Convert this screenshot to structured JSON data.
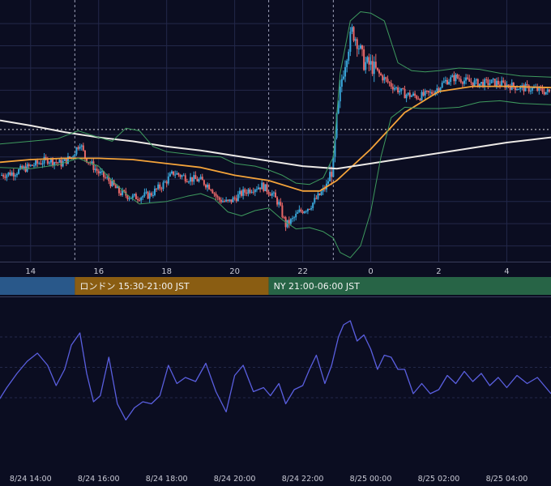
{
  "chart_data": [
    {
      "type": "candlestick",
      "panel": "price",
      "x_axis": {
        "type": "hours",
        "range": [
          13.1,
          29.3
        ],
        "tick_labels": [
          "14",
          "16",
          "18",
          "20",
          "22",
          "0",
          "2",
          "4"
        ],
        "tick_hours": [
          14,
          16,
          18,
          20,
          22,
          24,
          26,
          28
        ]
      },
      "y_axis": {
        "range": [
          0,
          100
        ],
        "labels_visible": false,
        "gridlines": [
          6,
          14.5,
          23,
          31.5,
          40,
          48.5,
          57,
          65.5,
          74,
          82.5,
          91
        ]
      },
      "session_dividers": [
        15.3,
        21,
        22.9
      ],
      "reference_line": 50.5,
      "price_path": [
        [
          13.1,
          33
        ],
        [
          13.5,
          34
        ],
        [
          14.0,
          36.5
        ],
        [
          14.5,
          39
        ],
        [
          14.9,
          37.5
        ],
        [
          15.2,
          40
        ],
        [
          15.45,
          45.5
        ],
        [
          15.6,
          40
        ],
        [
          15.8,
          37
        ],
        [
          16.0,
          34
        ],
        [
          16.3,
          31
        ],
        [
          16.6,
          26.5
        ],
        [
          17.0,
          24.5
        ],
        [
          17.5,
          25.5
        ],
        [
          17.9,
          29.5
        ],
        [
          18.2,
          34
        ],
        [
          18.6,
          32
        ],
        [
          19.0,
          31
        ],
        [
          19.3,
          28.5
        ],
        [
          19.5,
          24
        ],
        [
          19.8,
          22.5
        ],
        [
          20.2,
          26
        ],
        [
          20.5,
          28
        ],
        [
          20.8,
          29
        ],
        [
          21.1,
          26
        ],
        [
          21.3,
          22
        ],
        [
          21.5,
          14
        ],
        [
          21.7,
          16
        ],
        [
          21.9,
          19
        ],
        [
          22.2,
          21
        ],
        [
          22.5,
          25.5
        ],
        [
          22.7,
          29
        ],
        [
          22.9,
          37
        ],
        [
          23.0,
          54
        ],
        [
          23.15,
          70
        ],
        [
          23.3,
          80
        ],
        [
          23.45,
          88
        ],
        [
          23.6,
          84.5
        ],
        [
          23.8,
          76
        ],
        [
          24.0,
          75
        ],
        [
          24.3,
          71
        ],
        [
          24.6,
          67.5
        ],
        [
          25.0,
          64
        ],
        [
          25.4,
          63
        ],
        [
          25.8,
          64.5
        ],
        [
          26.2,
          69
        ],
        [
          26.5,
          70.5
        ],
        [
          26.8,
          69
        ],
        [
          27.2,
          68
        ],
        [
          27.6,
          68.5
        ],
        [
          28.0,
          67.5
        ],
        [
          28.4,
          66.5
        ],
        [
          28.8,
          66
        ],
        [
          29.3,
          64.5
        ]
      ],
      "candle_colors": {
        "up": "#39a6d9",
        "down": "#e86868"
      },
      "series": [
        {
          "name": "",
          "role": "short moving average",
          "color": "#f4a33a",
          "values": [
            [
              13.1,
              38
            ],
            [
              14,
              39
            ],
            [
              15,
              39.5
            ],
            [
              16,
              39.5
            ],
            [
              17,
              39
            ],
            [
              18,
              37.5
            ],
            [
              19,
              36
            ],
            [
              20,
              33
            ],
            [
              21,
              31
            ],
            [
              22,
              27
            ],
            [
              22.5,
              27
            ],
            [
              23,
              31
            ],
            [
              24,
              43
            ],
            [
              25,
              57
            ],
            [
              26,
              65
            ],
            [
              27,
              67
            ],
            [
              28,
              67
            ],
            [
              29.3,
              66.5
            ]
          ]
        },
        {
          "name": "",
          "role": "long moving average",
          "color": "#ece9e6",
          "values": [
            [
              13.1,
              54
            ],
            [
              14,
              52
            ],
            [
              15,
              49.5
            ],
            [
              16,
              47.5
            ],
            [
              17,
              46
            ],
            [
              18,
              44
            ],
            [
              19,
              42.5
            ],
            [
              20,
              40.5
            ],
            [
              21,
              38.5
            ],
            [
              22,
              36.5
            ],
            [
              23,
              35.5
            ],
            [
              24,
              37.5
            ],
            [
              25,
              39.5
            ],
            [
              26,
              41.5
            ],
            [
              27,
              43.5
            ],
            [
              28,
              45.5
            ],
            [
              29.3,
              47.5
            ]
          ]
        },
        {
          "name": "",
          "role": "upper band",
          "color": "#3e9a5e",
          "values": [
            [
              13.1,
              45
            ],
            [
              14,
              46
            ],
            [
              14.8,
              47
            ],
            [
              15.4,
              50
            ],
            [
              16,
              47.5
            ],
            [
              16.4,
              46
            ],
            [
              16.8,
              51
            ],
            [
              17.2,
              50
            ],
            [
              17.6,
              44
            ],
            [
              18,
              42
            ],
            [
              19,
              40.5
            ],
            [
              19.6,
              40
            ],
            [
              20,
              37.5
            ],
            [
              20.6,
              36.5
            ],
            [
              21,
              35
            ],
            [
              21.4,
              33
            ],
            [
              21.8,
              30
            ],
            [
              22.2,
              29.5
            ],
            [
              22.6,
              32
            ],
            [
              22.9,
              40
            ],
            [
              23.1,
              72
            ],
            [
              23.4,
              92
            ],
            [
              23.7,
              95.5
            ],
            [
              24,
              95
            ],
            [
              24.4,
              92
            ],
            [
              24.8,
              76
            ],
            [
              25.2,
              73
            ],
            [
              25.6,
              72.5
            ],
            [
              26,
              73
            ],
            [
              26.6,
              74
            ],
            [
              27.2,
              73.5
            ],
            [
              27.8,
              72
            ],
            [
              28.4,
              71
            ],
            [
              29.3,
              70.5
            ]
          ]
        },
        {
          "name": "",
          "role": "lower band",
          "color": "#3e9a5e",
          "values": [
            [
              13.1,
              36
            ],
            [
              14,
              35.5
            ],
            [
              14.8,
              37
            ],
            [
              15.4,
              39.5
            ],
            [
              16,
              36.5
            ],
            [
              16.4,
              31
            ],
            [
              16.8,
              26
            ],
            [
              17.2,
              22
            ],
            [
              17.6,
              22.5
            ],
            [
              18,
              23
            ],
            [
              18.6,
              25
            ],
            [
              19,
              26
            ],
            [
              19.4,
              24
            ],
            [
              19.8,
              19
            ],
            [
              20.2,
              17.5
            ],
            [
              20.6,
              19.5
            ],
            [
              21,
              20.5
            ],
            [
              21.4,
              16
            ],
            [
              21.8,
              12.5
            ],
            [
              22.2,
              13
            ],
            [
              22.6,
              11.5
            ],
            [
              22.9,
              9
            ],
            [
              23.1,
              3.5
            ],
            [
              23.4,
              1.5
            ],
            [
              23.7,
              6
            ],
            [
              24,
              19
            ],
            [
              24.3,
              40
            ],
            [
              24.6,
              55
            ],
            [
              25,
              59
            ],
            [
              25.5,
              58.5
            ],
            [
              26,
              58.5
            ],
            [
              26.6,
              59
            ],
            [
              27.2,
              61
            ],
            [
              27.8,
              61.5
            ],
            [
              28.4,
              60.5
            ],
            [
              29.3,
              60
            ]
          ]
        }
      ]
    },
    {
      "type": "line",
      "panel": "oscillator",
      "x": [
        13.0,
        13.3,
        13.6,
        13.9,
        14.2,
        14.5,
        14.75,
        15.0,
        15.2,
        15.45,
        15.65,
        15.85,
        16.05,
        16.3,
        16.55,
        16.8,
        17.05,
        17.3,
        17.55,
        17.8,
        18.05,
        18.3,
        18.55,
        18.85,
        19.15,
        19.45,
        19.75,
        20.0,
        20.25,
        20.55,
        20.85,
        21.05,
        21.3,
        21.5,
        21.75,
        22.0,
        22.2,
        22.4,
        22.65,
        22.85,
        23.05,
        23.2,
        23.4,
        23.6,
        23.8,
        24.0,
        24.2,
        24.4,
        24.6,
        24.8,
        25.0,
        25.25,
        25.5,
        25.75,
        26.0,
        26.25,
        26.5,
        26.75,
        27.0,
        27.25,
        27.5,
        27.75,
        28.0,
        28.3,
        28.6,
        28.9,
        29.3
      ],
      "values": [
        47,
        55,
        62,
        68,
        72,
        66,
        56,
        64,
        76,
        82,
        62,
        48,
        51,
        70,
        47,
        39,
        45,
        48,
        47,
        51,
        66,
        57,
        60,
        58,
        67,
        53,
        43,
        61,
        66,
        53,
        55,
        51,
        57,
        47,
        54,
        56,
        64,
        71,
        57,
        66,
        80,
        86,
        88,
        78,
        81,
        74,
        64,
        71,
        70,
        64,
        64,
        52,
        57,
        52,
        54,
        61,
        57,
        63,
        58,
        62,
        56,
        60,
        55,
        61,
        57,
        60,
        52
      ],
      "color": "#5a5fe0",
      "ylim": [
        20,
        100
      ],
      "gridlines": [
        50,
        65,
        80
      ],
      "x_tick_labels": [
        "8/24 14:00",
        "8/24 16:00",
        "8/24 18:00",
        "8/24 20:00",
        "8/24 22:00",
        "8/25 00:00",
        "8/25 02:00",
        "8/25 04:00"
      ],
      "x_tick_hours": [
        14,
        16,
        18,
        20,
        22,
        24,
        26,
        28
      ]
    }
  ],
  "sessions": [
    {
      "label": "",
      "color": "#29588a",
      "start": 13.1,
      "end": 15.3
    },
    {
      "label": "ロンドン 15:30-21:00 JST",
      "color": "#8a5d12",
      "start": 15.3,
      "end": 21.0
    },
    {
      "label": "NY 21:00-06:00 JST",
      "color": "#276446",
      "start": 21.0,
      "end": 29.3
    }
  ],
  "colors": {
    "background": "#0b0d21",
    "grid": "#23284a",
    "axis_text": "#c8c9d4",
    "panel_border": "#3a3e5c"
  }
}
